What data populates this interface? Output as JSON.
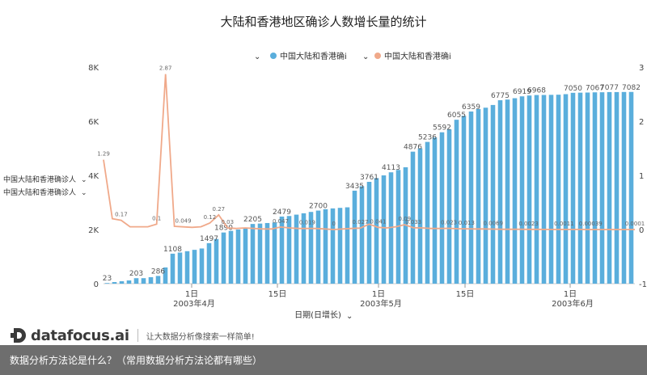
{
  "title": "大陆和香港地区确诊人数增长量的统计",
  "legend": {
    "bar_label": "中国大陆和香港确i",
    "line_label": "中国大陆和香港确i"
  },
  "side_legend": [
    "中国大陆和香港确诊人",
    "中国大陆和香港确诊人"
  ],
  "colors": {
    "bar": "#5aaedc",
    "line": "#f0a98a"
  },
  "brand": {
    "name": "datafocus.ai",
    "slogan": "让大数据分析像搜索一样简单!"
  },
  "footer": {
    "text": "数据分析方法论是什么？（常用数据分析方法论都有哪些）"
  },
  "chart_data": {
    "type": "bar",
    "title": "大陆和香港地区确诊人数增长量的统计",
    "xlabel": "日期(日增长)",
    "x_ticks": [
      {
        "day": "1日",
        "month": "2003年4月"
      },
      {
        "day": "15日",
        "month": ""
      },
      {
        "day": "1日",
        "month": "2003年5月"
      },
      {
        "day": "15日",
        "month": ""
      },
      {
        "day": "1日",
        "month": "2003年6月"
      }
    ],
    "y_left_ticks": [
      "0",
      "2K",
      "4K",
      "6K",
      "8K"
    ],
    "y_left_range": [
      0,
      8000
    ],
    "y_right_ticks": [
      "-1",
      "0",
      "1",
      "2",
      "3"
    ],
    "y_right_range": [
      -1,
      3
    ],
    "grid": false,
    "legend_position": "top",
    "series": [
      {
        "name": "中国大陆和香港确i",
        "type": "bar",
        "axis": "left",
        "values": [
          23,
          60,
          90,
          120,
          203,
          203,
          240,
          286,
          600,
          1108,
          1150,
          1200,
          1250,
          1300,
          1497,
          1650,
          1890,
          1950,
          2000,
          2050,
          2205,
          2220,
          2240,
          2260,
          2479,
          2500,
          2550,
          2600,
          2650,
          2700,
          2750,
          2780,
          2800,
          2820,
          3435,
          3600,
          3761,
          3900,
          4000,
          4113,
          4200,
          4300,
          4876,
          5000,
          5236,
          5400,
          5592,
          5700,
          6055,
          6200,
          6359,
          6450,
          6500,
          6600,
          6775,
          6800,
          6850,
          6919,
          6950,
          6968,
          6970,
          6975,
          6980,
          7000,
          7050,
          7055,
          7060,
          7067,
          7070,
          7077,
          7077,
          7080,
          7082
        ],
        "data_labels": [
          {
            "i": 0,
            "text": "23"
          },
          {
            "i": 4,
            "text": "203"
          },
          {
            "i": 7,
            "text": "286"
          },
          {
            "i": 9,
            "text": "1108"
          },
          {
            "i": 14,
            "text": "1497"
          },
          {
            "i": 16,
            "text": "1890"
          },
          {
            "i": 20,
            "text": "2205"
          },
          {
            "i": 24,
            "text": "2479"
          },
          {
            "i": 29,
            "text": "2700"
          },
          {
            "i": 34,
            "text": "3435"
          },
          {
            "i": 36,
            "text": "3761"
          },
          {
            "i": 39,
            "text": "4113"
          },
          {
            "i": 42,
            "text": "4876"
          },
          {
            "i": 44,
            "text": "5236"
          },
          {
            "i": 46,
            "text": "5592"
          },
          {
            "i": 48,
            "text": "6055"
          },
          {
            "i": 50,
            "text": "6359"
          },
          {
            "i": 54,
            "text": "6775"
          },
          {
            "i": 57,
            "text": "6919"
          },
          {
            "i": 59,
            "text": "6968"
          },
          {
            "i": 64,
            "text": "7050"
          },
          {
            "i": 67,
            "text": "7067"
          },
          {
            "i": 69,
            "text": "7077"
          },
          {
            "i": 72,
            "text": "7082"
          }
        ]
      },
      {
        "name": "中国大陆和香港确i",
        "type": "line",
        "axis": "right",
        "values": [
          1.29,
          0.2,
          0.17,
          0.05,
          0.05,
          0.05,
          0.1,
          2.87,
          0.06,
          0.049,
          0.04,
          0.05,
          0.12,
          0.27,
          0.03,
          0.02,
          0.03,
          0.02,
          0.01,
          0.01,
          0.047,
          0.03,
          0.02,
          0.019,
          0.02,
          0.01,
          0.0,
          0.01,
          0.02,
          0.027,
          0.1,
          0.041,
          0.03,
          0.05,
          0.09,
          0.033,
          0.03,
          0.02,
          0.02,
          0.023,
          0.015,
          0.013,
          0.01,
          0.01,
          0.0069,
          0.005,
          0.004,
          0.004,
          0.0023,
          0.003,
          0.002,
          0.002,
          0.0011,
          0.001,
          0.001,
          0.00039,
          0.0003,
          0.0003,
          0.00028,
          0.0002,
          0.0001
        ],
        "data_labels": [
          {
            "i": 0,
            "text": "1.29"
          },
          {
            "i": 2,
            "text": "0.17"
          },
          {
            "i": 6,
            "text": "0.1"
          },
          {
            "i": 7,
            "text": "2.87"
          },
          {
            "i": 9,
            "text": "0.049"
          },
          {
            "i": 12,
            "text": "0.12"
          },
          {
            "i": 13,
            "text": "0.27"
          },
          {
            "i": 14,
            "text": "0.03"
          },
          {
            "i": 20,
            "text": "0.047"
          },
          {
            "i": 23,
            "text": "0.019"
          },
          {
            "i": 26,
            "text": "0"
          },
          {
            "i": 29,
            "text": "0.027"
          },
          {
            "i": 31,
            "text": "0.041"
          },
          {
            "i": 34,
            "text": "0.09"
          },
          {
            "i": 35,
            "text": "0.033"
          },
          {
            "i": 39,
            "text": "0.023"
          },
          {
            "i": 41,
            "text": "0.013"
          },
          {
            "i": 44,
            "text": "0.0069"
          },
          {
            "i": 48,
            "text": "0.0023"
          },
          {
            "i": 52,
            "text": "0.0011"
          },
          {
            "i": 55,
            "text": "0.00039"
          },
          {
            "i": 60,
            "text": "0.0001"
          }
        ]
      }
    ]
  }
}
